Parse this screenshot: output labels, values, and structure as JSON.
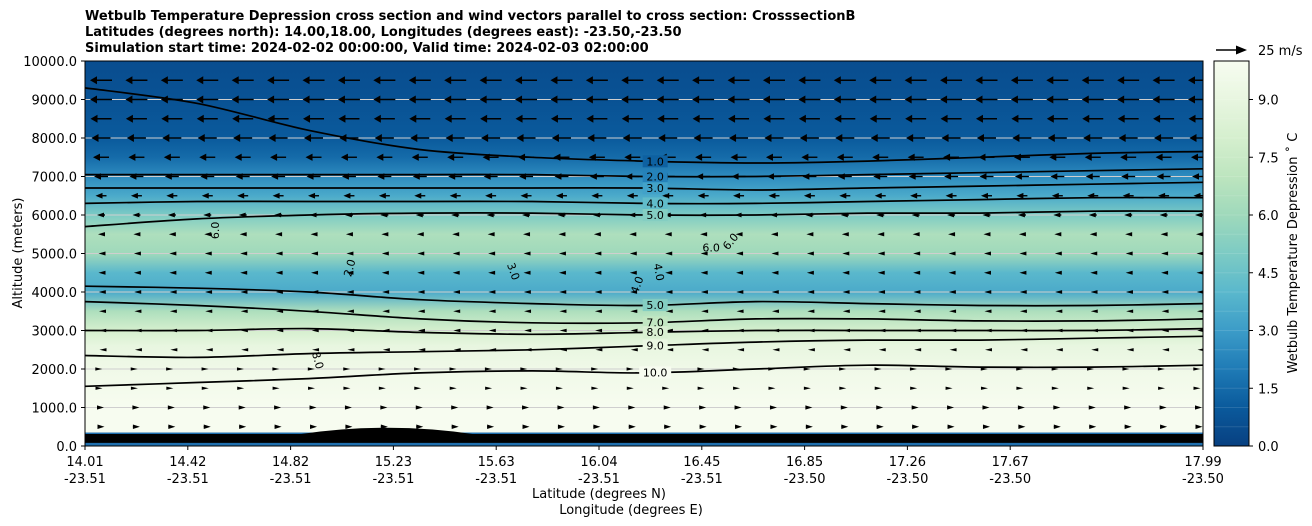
{
  "chart_data": {
    "type": "contour",
    "title_lines": [
      "Wetbulb Temperature Depression cross section and wind vectors parallel to cross section: CrosssectionB",
      "Latitudes (degrees north): 14.00,18.00, Longitudes (degrees east): -23.50,-23.50",
      "Simulation start time: 2024-02-02 00:00:00, Valid time: 2024-02-03 02:00:00"
    ],
    "ylabel": "Altitude (meters)",
    "xlabel_lat": "Latitude (degrees N)",
    "xlabel_lon": "Longitude (degrees E)",
    "ylim": [
      0,
      10000
    ],
    "yticks": [
      "0.0",
      "1000.0",
      "2000.0",
      "3000.0",
      "4000.0",
      "5000.0",
      "6000.0",
      "7000.0",
      "8000.0",
      "9000.0",
      "10000.0"
    ],
    "xticks": [
      {
        "lat": "14.01",
        "lon": "-23.51"
      },
      {
        "lat": "14.42",
        "lon": "-23.51"
      },
      {
        "lat": "14.82",
        "lon": "-23.51"
      },
      {
        "lat": "15.23",
        "lon": "-23.51"
      },
      {
        "lat": "15.63",
        "lon": "-23.51"
      },
      {
        "lat": "16.04",
        "lon": "-23.51"
      },
      {
        "lat": "16.45",
        "lon": "-23.51"
      },
      {
        "lat": "16.85",
        "lon": "-23.50"
      },
      {
        "lat": "17.26",
        "lon": "-23.50"
      },
      {
        "lat": "17.67",
        "lon": "-23.50"
      },
      {
        "lat": "17.99",
        "lon": "-23.50"
      }
    ],
    "colorbar": {
      "label": "Wetbulb Temperature Depression $^\\circ$C",
      "label_display": "Wetbulb Temperature Depression ˚ C",
      "range": [
        0,
        10
      ],
      "ticks": [
        "0.0",
        "1.5",
        "3.0",
        "4.5",
        "6.0",
        "7.5",
        "9.0"
      ]
    },
    "quiver_key": "25 m/s",
    "profile_depression_by_altitude": [
      {
        "alt": 0,
        "v": 2
      },
      {
        "alt": 300,
        "v": 10
      },
      {
        "alt": 1000,
        "v": 10
      },
      {
        "alt": 2000,
        "v": 9.5
      },
      {
        "alt": 2600,
        "v": 9
      },
      {
        "alt": 3000,
        "v": 8
      },
      {
        "alt": 3500,
        "v": 6.5
      },
      {
        "alt": 4000,
        "v": 3.5
      },
      {
        "alt": 4500,
        "v": 4
      },
      {
        "alt": 5000,
        "v": 6
      },
      {
        "alt": 5500,
        "v": 6.5
      },
      {
        "alt": 6000,
        "v": 5
      },
      {
        "alt": 6500,
        "v": 3.5
      },
      {
        "alt": 7000,
        "v": 2.5
      },
      {
        "alt": 7500,
        "v": 1.5
      },
      {
        "alt": 8000,
        "v": 1
      },
      {
        "alt": 9000,
        "v": 0.7
      },
      {
        "alt": 10000,
        "v": 0.5
      }
    ],
    "contours": [
      {
        "label": "1.0",
        "alt": [
          9300,
          8900,
          8200,
          7700,
          7500,
          7400,
          7350,
          7400,
          7500,
          7600,
          7650
        ],
        "label_x": 0.51
      },
      {
        "label": "2.0",
        "alt": [
          7050,
          7050,
          7050,
          7050,
          7050,
          7000,
          7000,
          7050,
          7100,
          7150,
          7200
        ],
        "label_x": 0.51
      },
      {
        "label": "3.0",
        "alt": [
          6700,
          6700,
          6700,
          6700,
          6700,
          6700,
          6650,
          6700,
          6750,
          6800,
          6850
        ],
        "label_x": 0.51
      },
      {
        "label": "4.0",
        "alt": [
          6300,
          6350,
          6350,
          6350,
          6350,
          6300,
          6300,
          6350,
          6400,
          6450,
          6450
        ],
        "label_x": 0.51
      },
      {
        "label": "5.0",
        "alt": [
          5700,
          5900,
          6000,
          6050,
          6050,
          6000,
          6000,
          6050,
          6050,
          6100,
          6100
        ],
        "label_x": 0.51
      },
      {
        "label": "5.0",
        "alt": [
          4150,
          4100,
          4000,
          3800,
          3700,
          3650,
          3750,
          3700,
          3650,
          3650,
          3700
        ],
        "label_x": 0.51
      },
      {
        "label": "7.0",
        "alt": [
          3750,
          3650,
          3500,
          3300,
          3200,
          3200,
          3300,
          3300,
          3250,
          3250,
          3300
        ],
        "label_x": 0.51
      },
      {
        "label": "8.0",
        "alt": [
          3000,
          3000,
          3050,
          2950,
          2900,
          2950,
          3000,
          3000,
          3000,
          3000,
          3050
        ],
        "label_x": 0.51
      },
      {
        "label": "9.0",
        "alt": [
          2350,
          2300,
          2400,
          2450,
          2500,
          2600,
          2700,
          2750,
          2750,
          2800,
          2850
        ],
        "label_x": 0.51
      },
      {
        "label": "10.0",
        "alt": [
          1550,
          1650,
          1750,
          1900,
          1950,
          1900,
          2000,
          2100,
          2050,
          2050,
          2100
        ],
        "label_x": 0.51
      }
    ],
    "extra_labels": [
      {
        "text": "6.0",
        "x": 0.12,
        "alt": 5600,
        "rot": -90
      },
      {
        "text": "2.0",
        "x": 0.24,
        "alt": 4600,
        "rot": -75
      },
      {
        "text": "3.0",
        "x": 0.38,
        "alt": 4500,
        "rot": 70
      },
      {
        "text": "4.0",
        "x": 0.51,
        "alt": 4500,
        "rot": 80
      },
      {
        "text": "4.0",
        "x": 0.497,
        "alt": 4150,
        "rot": -70
      },
      {
        "text": "6.0",
        "x": 0.56,
        "alt": 5050,
        "rot": 0
      },
      {
        "text": "6.0",
        "x": 0.58,
        "alt": 5250,
        "rot": -50
      },
      {
        "text": "8.0",
        "x": 0.205,
        "alt": 2200,
        "rot": 75
      }
    ],
    "wind_rows": [
      {
        "alt": 9500,
        "dir": -1,
        "mag": 1.0
      },
      {
        "alt": 9000,
        "dir": -1,
        "mag": 1.0
      },
      {
        "alt": 8500,
        "dir": -1,
        "mag": 0.95
      },
      {
        "alt": 8000,
        "dir": -1,
        "mag": 0.85
      },
      {
        "alt": 7500,
        "dir": -1,
        "mag": 0.7
      },
      {
        "alt": 7000,
        "dir": -1,
        "mag": 0.6
      },
      {
        "alt": 6500,
        "dir": -1,
        "mag": 0.45
      },
      {
        "alt": 6000,
        "dir": -1,
        "mag": 0.3
      },
      {
        "alt": 5500,
        "dir": -1,
        "mag": 0.2
      },
      {
        "alt": 5000,
        "dir": -1,
        "mag": 0.15
      },
      {
        "alt": 4500,
        "dir": -1,
        "mag": 0.15
      },
      {
        "alt": 4000,
        "dir": -1,
        "mag": 0.12
      },
      {
        "alt": 3500,
        "dir": -1,
        "mag": 0.1
      },
      {
        "alt": 3000,
        "dir": -1,
        "mag": 0.08
      },
      {
        "alt": 2500,
        "dir": -1,
        "mag": 0.05
      },
      {
        "alt": 2000,
        "dir": 1,
        "mag": 0.03
      },
      {
        "alt": 1500,
        "dir": 1,
        "mag": 0.05
      },
      {
        "alt": 1000,
        "dir": 1,
        "mag": 0.2
      },
      {
        "alt": 500,
        "dir": 1,
        "mag": 0.25
      }
    ]
  }
}
